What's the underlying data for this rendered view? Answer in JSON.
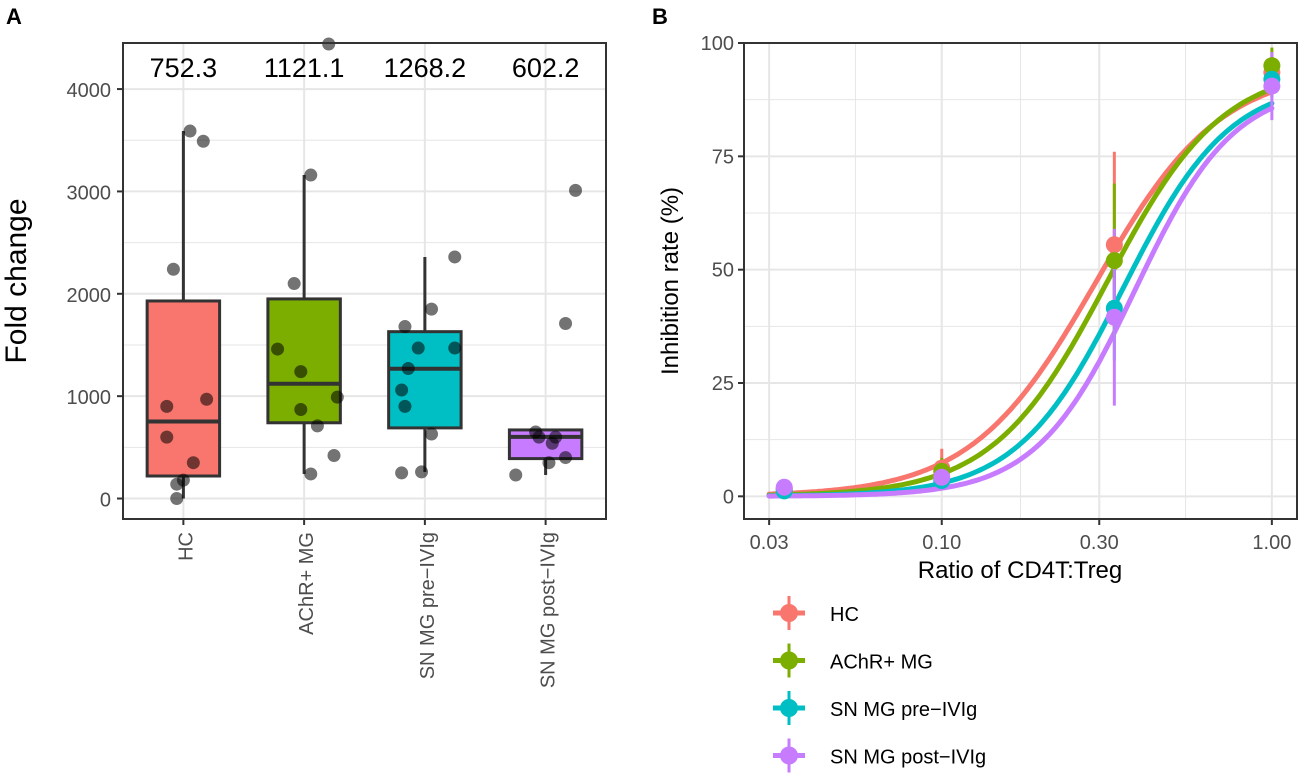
{
  "chart_data": [
    {
      "panel": "A",
      "type": "box",
      "title": "",
      "xlabel": "",
      "ylabel": "Fold change",
      "ylim": [
        -200,
        4450
      ],
      "yticks": [
        0,
        1000,
        2000,
        3000,
        4000
      ],
      "ytick_labels": [
        "0",
        "1000",
        "2000",
        "3000",
        "4000"
      ],
      "grid": true,
      "categories": [
        "HC",
        "AChR+ MG",
        "SN MG pre−IVIg",
        "SN MG post−IVIg"
      ],
      "annotations": [
        "752.3",
        "1121.1",
        "1268.2",
        "602.2"
      ],
      "boxes": [
        {
          "name": "HC",
          "color": "#F8766D",
          "whisker_low": 0,
          "q1": 220,
          "median": 752,
          "q3": 1930,
          "whisker_high": 3590
        },
        {
          "name": "AChR+ MG",
          "color": "#7CAE00",
          "whisker_low": 240,
          "q1": 740,
          "median": 1121,
          "q3": 1950,
          "whisker_high": 3160
        },
        {
          "name": "SN MG pre−IVIg",
          "color": "#00BFC4",
          "whisker_low": 260,
          "q1": 690,
          "median": 1268,
          "q3": 1630,
          "whisker_high": 2360
        },
        {
          "name": "SN MG post−IVIg",
          "color": "#C77CFF",
          "whisker_low": 230,
          "q1": 390,
          "median": 602,
          "q3": 670,
          "whisker_high": 680
        }
      ],
      "points": [
        [
          {
            "dx": -0.1,
            "y": 0
          },
          {
            "dx": -0.25,
            "y": 600
          },
          {
            "dx": -0.25,
            "y": 900
          },
          {
            "dx": 0.0,
            "y": 180
          },
          {
            "dx": -0.1,
            "y": 140
          },
          {
            "dx": 0.15,
            "y": 350
          },
          {
            "dx": 0.35,
            "y": 970
          },
          {
            "dx": -0.15,
            "y": 2240
          },
          {
            "dx": 0.3,
            "y": 3490
          },
          {
            "dx": 0.1,
            "y": 3590
          }
        ],
        [
          {
            "dx": -0.4,
            "y": 1460
          },
          {
            "dx": -0.15,
            "y": 2100
          },
          {
            "dx": 0.1,
            "y": 3160
          },
          {
            "dx": -0.05,
            "y": 1240
          },
          {
            "dx": -0.05,
            "y": 870
          },
          {
            "dx": 0.2,
            "y": 710
          },
          {
            "dx": 0.45,
            "y": 420
          },
          {
            "dx": 0.5,
            "y": 990
          },
          {
            "dx": 0.1,
            "y": 240
          },
          {
            "dx": 0.37,
            "y": 4440
          }
        ],
        [
          {
            "dx": -0.35,
            "y": 1060
          },
          {
            "dx": -0.3,
            "y": 900
          },
          {
            "dx": -0.3,
            "y": 1680
          },
          {
            "dx": -0.25,
            "y": 1270
          },
          {
            "dx": -0.1,
            "y": 1470
          },
          {
            "dx": 0.1,
            "y": 1850
          },
          {
            "dx": 0.1,
            "y": 630
          },
          {
            "dx": 0.45,
            "y": 2360
          },
          {
            "dx": 0.45,
            "y": 1470
          },
          {
            "dx": -0.35,
            "y": 250
          },
          {
            "dx": -0.05,
            "y": 260
          }
        ],
        [
          {
            "dx": -0.45,
            "y": 230
          },
          {
            "dx": -0.1,
            "y": 600
          },
          {
            "dx": -0.15,
            "y": 650
          },
          {
            "dx": 0.05,
            "y": 350
          },
          {
            "dx": 0.15,
            "y": 600
          },
          {
            "dx": 0.1,
            "y": 540
          },
          {
            "dx": 0.3,
            "y": 400
          },
          {
            "dx": 0.3,
            "y": 1710
          },
          {
            "dx": 0.45,
            "y": 3010
          }
        ]
      ]
    },
    {
      "panel": "B",
      "type": "line",
      "title": "",
      "xlabel": "Ratio of CD4T:Treg",
      "ylabel": "Inhibition rate (%)",
      "xscale": "log",
      "xlim": [
        0.03,
        1.0
      ],
      "ylim": [
        -5,
        100
      ],
      "xticks": [
        0.03,
        0.1,
        0.3,
        1.0
      ],
      "xtick_labels": [
        "0.03",
        "0.10",
        "0.30",
        "1.00"
      ],
      "yticks": [
        0,
        25,
        50,
        75,
        100
      ],
      "ytick_labels": [
        "0",
        "25",
        "50",
        "75",
        "100"
      ],
      "grid": true,
      "legend_position": "bottom-left",
      "x": [
        0.03333,
        0.1,
        0.3333,
        1.0
      ],
      "series": [
        {
          "name": "HC",
          "color": "#F8766D",
          "values": [
            1.8,
            6.2,
            55.5,
            93.5
          ],
          "err_low": [
            1.0,
            3.0,
            35.0,
            91.0
          ],
          "err_high": [
            2.6,
            10.5,
            76.0,
            95.0
          ],
          "ic50": 0.293,
          "hill": 2.3,
          "top": 94.5,
          "bottom": 0.0
        },
        {
          "name": "AChR+ MG",
          "color": "#7CAE00",
          "values": [
            1.5,
            5.5,
            52.0,
            95.0
          ],
          "err_low": [
            1.0,
            3.0,
            35.0,
            91.0
          ],
          "err_high": [
            2.2,
            8.5,
            69.0,
            99.0
          ],
          "ic50": 0.318,
          "hill": 2.5,
          "top": 95.0,
          "bottom": 0.0
        },
        {
          "name": "SN MG pre−IVIg",
          "color": "#00BFC4",
          "values": [
            1.2,
            3.5,
            41.5,
            92.0
          ],
          "err_low": [
            0.6,
            2.0,
            30.0,
            88.0
          ],
          "err_high": [
            1.8,
            5.0,
            53.0,
            96.0
          ],
          "ic50": 0.355,
          "hill": 2.7,
          "top": 92.0,
          "bottom": 0.0
        },
        {
          "name": "SN MG post−IVIg",
          "color": "#C77CFF",
          "values": [
            2.0,
            4.2,
            39.5,
            90.5
          ],
          "err_low": [
            1.2,
            2.5,
            20.0,
            83.0
          ],
          "err_high": [
            2.8,
            6.0,
            59.0,
            98.0
          ],
          "ic50": 0.385,
          "hill": 2.9,
          "top": 91.0,
          "bottom": 0.0
        }
      ]
    }
  ],
  "labels": {
    "panel_a": "A",
    "panel_b": "B"
  }
}
